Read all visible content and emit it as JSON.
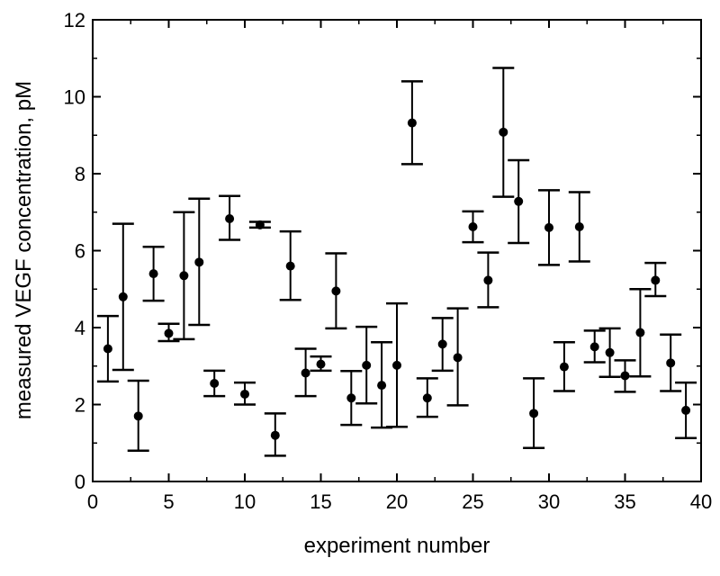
{
  "chart_data": {
    "type": "scatter",
    "title": "",
    "xlabel": "experiment number",
    "ylabel": "measured VEGF concentration, pM",
    "xlim": [
      0,
      40
    ],
    "ylim": [
      0,
      12
    ],
    "x_ticks": [
      "0",
      "5",
      "10",
      "15",
      "20",
      "25",
      "30",
      "35",
      "40"
    ],
    "y_ticks": [
      "0",
      "2",
      "4",
      "6",
      "8",
      "10",
      "12"
    ],
    "grid": false,
    "legend": "none",
    "marker_color": "#000000",
    "error_bars": true,
    "points": [
      {
        "x": 1,
        "y": 3.45,
        "low": 2.6,
        "high": 4.3
      },
      {
        "x": 2,
        "y": 4.8,
        "low": 2.9,
        "high": 6.7
      },
      {
        "x": 3,
        "y": 1.7,
        "low": 0.8,
        "high": 2.62
      },
      {
        "x": 4,
        "y": 5.4,
        "low": 4.7,
        "high": 6.1
      },
      {
        "x": 5,
        "y": 3.85,
        "low": 3.65,
        "high": 4.1
      },
      {
        "x": 6,
        "y": 5.35,
        "low": 3.7,
        "high": 7.0
      },
      {
        "x": 7,
        "y": 5.7,
        "low": 4.07,
        "high": 7.35
      },
      {
        "x": 8,
        "y": 2.55,
        "low": 2.22,
        "high": 2.88
      },
      {
        "x": 9,
        "y": 6.83,
        "low": 6.28,
        "high": 7.42
      },
      {
        "x": 10,
        "y": 2.27,
        "low": 2.0,
        "high": 2.57
      },
      {
        "x": 11,
        "y": 6.67,
        "low": 6.6,
        "high": 6.75
      },
      {
        "x": 12,
        "y": 1.2,
        "low": 0.67,
        "high": 1.77
      },
      {
        "x": 13,
        "y": 5.6,
        "low": 4.72,
        "high": 6.5
      },
      {
        "x": 14,
        "y": 2.82,
        "low": 2.22,
        "high": 3.45
      },
      {
        "x": 15,
        "y": 3.05,
        "low": 2.88,
        "high": 3.25
      },
      {
        "x": 16,
        "y": 4.95,
        "low": 3.98,
        "high": 5.93
      },
      {
        "x": 17,
        "y": 2.17,
        "low": 1.47,
        "high": 2.87
      },
      {
        "x": 18,
        "y": 3.02,
        "low": 2.03,
        "high": 4.02
      },
      {
        "x": 19,
        "y": 2.5,
        "low": 1.4,
        "high": 3.62
      },
      {
        "x": 20,
        "y": 3.02,
        "low": 1.42,
        "high": 4.63
      },
      {
        "x": 21,
        "y": 9.32,
        "low": 8.25,
        "high": 10.4
      },
      {
        "x": 22,
        "y": 2.17,
        "low": 1.68,
        "high": 2.68
      },
      {
        "x": 23,
        "y": 3.57,
        "low": 2.88,
        "high": 4.25
      },
      {
        "x": 24,
        "y": 3.22,
        "low": 1.98,
        "high": 4.5
      },
      {
        "x": 25,
        "y": 6.62,
        "low": 6.22,
        "high": 7.02
      },
      {
        "x": 26,
        "y": 5.23,
        "low": 4.53,
        "high": 5.95
      },
      {
        "x": 27,
        "y": 9.08,
        "low": 7.4,
        "high": 10.75
      },
      {
        "x": 28,
        "y": 7.28,
        "low": 6.2,
        "high": 8.35
      },
      {
        "x": 29,
        "y": 1.77,
        "low": 0.87,
        "high": 2.68
      },
      {
        "x": 30,
        "y": 6.6,
        "low": 5.63,
        "high": 7.57
      },
      {
        "x": 31,
        "y": 2.98,
        "low": 2.35,
        "high": 3.62
      },
      {
        "x": 32,
        "y": 6.62,
        "low": 5.72,
        "high": 7.52
      },
      {
        "x": 33,
        "y": 3.5,
        "low": 3.1,
        "high": 3.92
      },
      {
        "x": 34,
        "y": 3.35,
        "low": 2.72,
        "high": 3.98
      },
      {
        "x": 35,
        "y": 2.75,
        "low": 2.33,
        "high": 3.15
      },
      {
        "x": 36,
        "y": 3.87,
        "low": 2.73,
        "high": 5.0
      },
      {
        "x": 37,
        "y": 5.23,
        "low": 4.82,
        "high": 5.68
      },
      {
        "x": 38,
        "y": 3.08,
        "low": 2.35,
        "high": 3.82
      },
      {
        "x": 39,
        "y": 1.85,
        "low": 1.13,
        "high": 2.57
      }
    ]
  }
}
